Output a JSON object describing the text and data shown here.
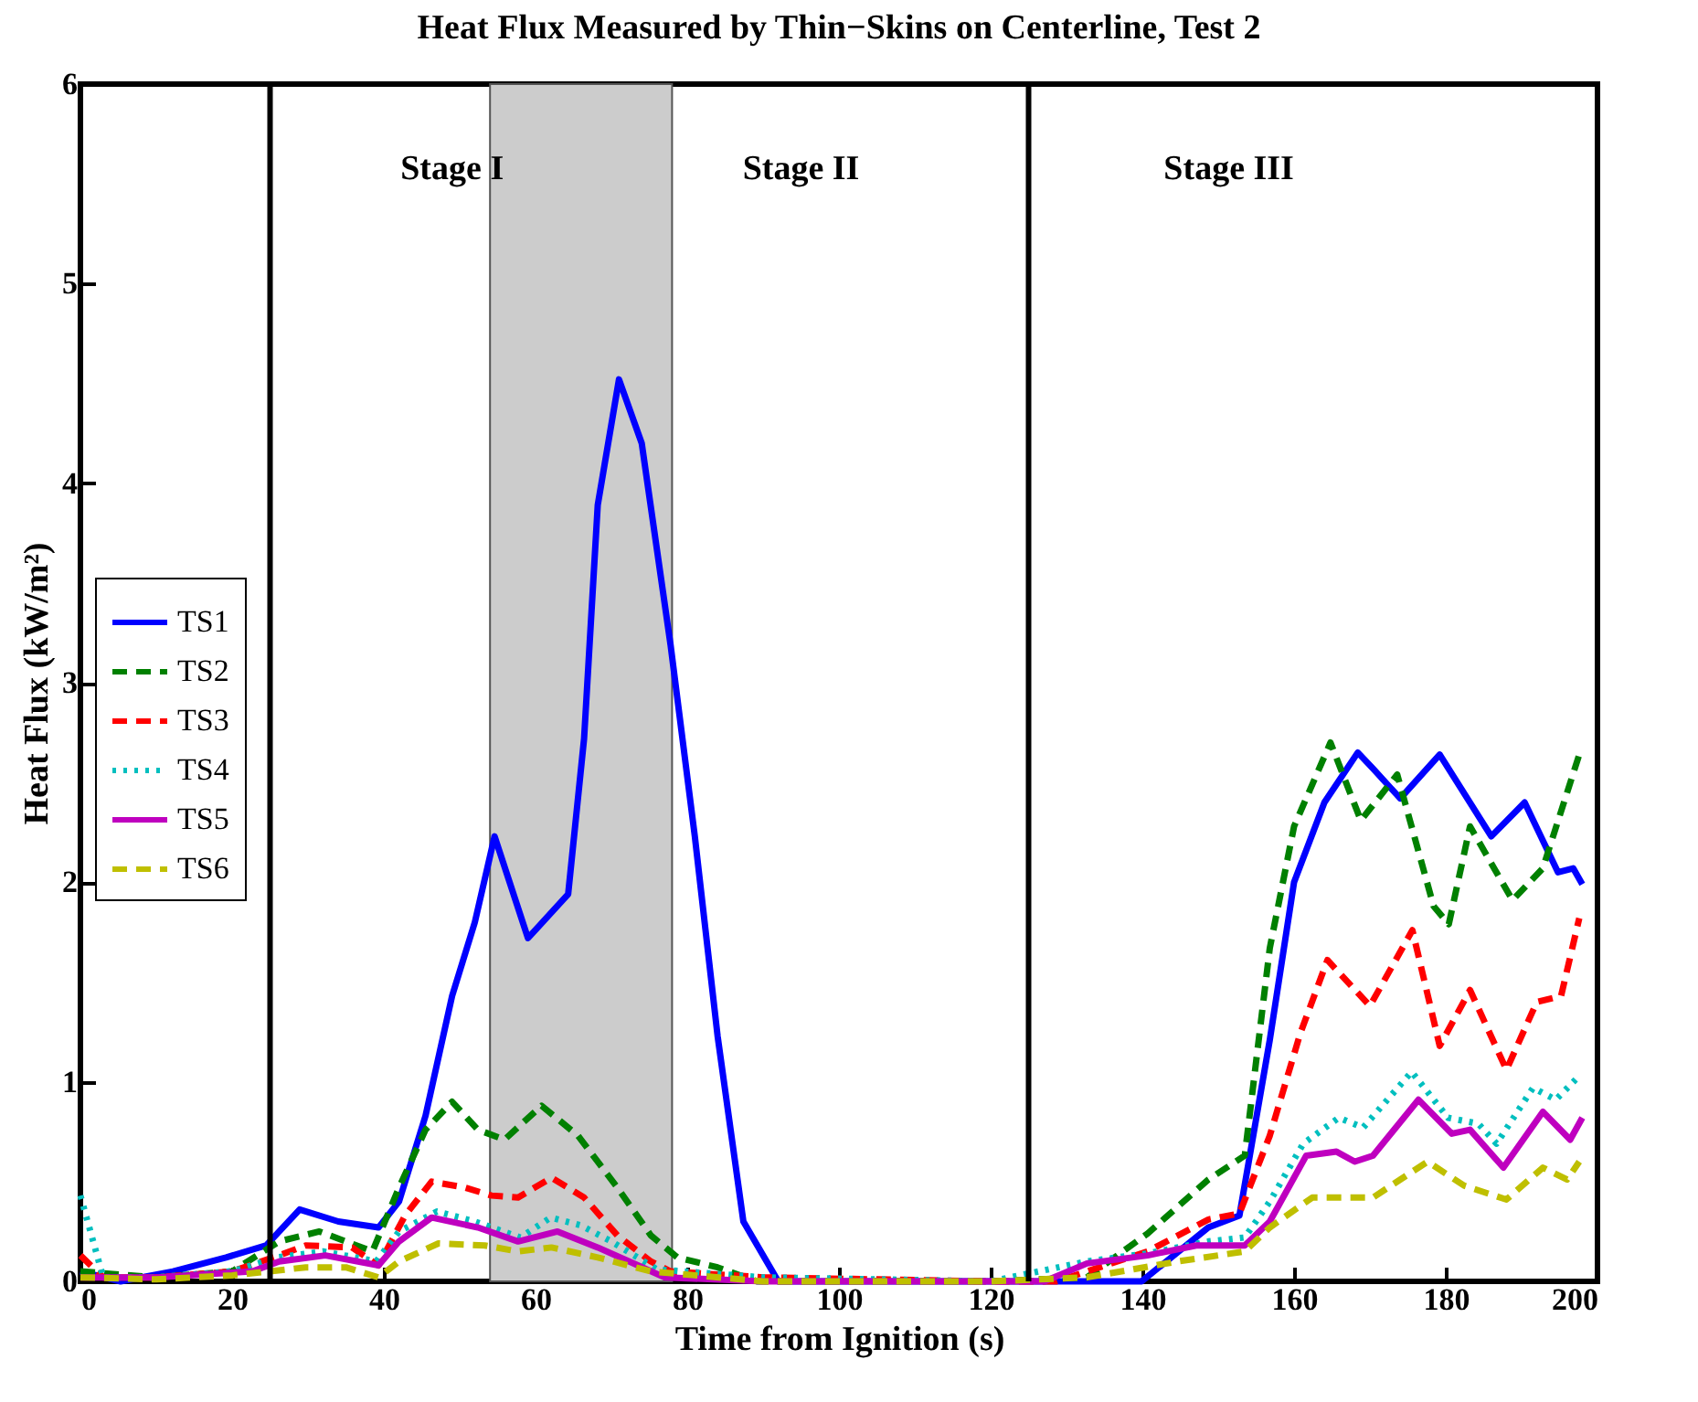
{
  "chart_data": {
    "type": "line",
    "title": "Heat Flux Measured by Thin−Skins on Centerline, Test 2",
    "xlabel": "Time from Ignition (s)",
    "ylabel": "Heat Flux (kW/m²)",
    "xlim": [
      0,
      200
    ],
    "xticks": [
      0,
      20,
      40,
      60,
      80,
      100,
      120,
      140,
      160,
      180,
      200
    ],
    "ylim": [
      0,
      6
    ],
    "yticks": [
      0,
      1,
      2,
      3,
      4,
      5,
      6
    ],
    "grid": false,
    "legend": "left",
    "marker": "none",
    "ref_lines": [
      {
        "axis": "x",
        "value": 25,
        "color": "#000000"
      },
      {
        "axis": "x",
        "value": 125,
        "color": "#000000"
      }
    ],
    "bands": [
      {
        "axis": "x",
        "from": 54,
        "to": 78,
        "color": "#cccccc"
      }
    ],
    "annotations": [
      "Stage I",
      "Stage II",
      "Stage III"
    ],
    "series": [
      {
        "name": "TS1",
        "color": "#0000ff",
        "line_style": "solid",
        "x": [
          0,
          5.3,
          12.2,
          19.2,
          24.5,
          28.9,
          34,
          39.3,
          42,
          45.5,
          49,
          52,
          54.6,
          59,
          64.3,
          66.4,
          68.2,
          71,
          74,
          77.8,
          81,
          84,
          87.4,
          92,
          100,
          120,
          139.9,
          148.7,
          152.8,
          156.8,
          160,
          164,
          168.4,
          170.4,
          174,
          179.2,
          186,
          190.4,
          194.8,
          196.8,
          198
        ],
        "values": [
          0.05,
          0,
          0.05,
          0.12,
          0.18,
          0.36,
          0.3,
          0.27,
          0.4,
          0.83,
          1.43,
          1.8,
          2.23,
          1.72,
          1.94,
          2.72,
          3.89,
          4.52,
          4.2,
          3.19,
          2.23,
          1.23,
          0.3,
          0,
          0,
          0,
          0,
          0.27,
          0.33,
          1.21,
          2.0,
          2.4,
          2.65,
          2.57,
          2.42,
          2.64,
          2.23,
          2.4,
          2.05,
          2.07,
          1.99
        ]
      },
      {
        "name": "TS2",
        "color": "#008000",
        "line_style": "dashed",
        "x": [
          0,
          10,
          20,
          26.2,
          31.5,
          38.5,
          42,
          45.5,
          49,
          52.4,
          55.9,
          60.8,
          65.6,
          70.8,
          75.2,
          78.7,
          84,
          89.2,
          100,
          120,
          132.7,
          140.7,
          148.7,
          153.5,
          156.8,
          160,
          164.8,
          168.8,
          173.6,
          178.4,
          180.4,
          183.2,
          188.8,
          192.8,
          197.6
        ],
        "values": [
          0.05,
          0.02,
          0.05,
          0.2,
          0.25,
          0.15,
          0.47,
          0.76,
          0.9,
          0.76,
          0.71,
          0.88,
          0.73,
          0.47,
          0.23,
          0.12,
          0.07,
          0,
          0,
          0,
          0.02,
          0.24,
          0.51,
          0.63,
          1.67,
          2.28,
          2.7,
          2.31,
          2.54,
          1.88,
          1.79,
          2.28,
          1.91,
          2.07,
          2.64
        ]
      },
      {
        "name": "TS3",
        "color": "#ff0000",
        "line_style": "dashed",
        "x": [
          0,
          3,
          10,
          20,
          26.2,
          29.7,
          35.8,
          39.3,
          42.8,
          46.3,
          50.7,
          54.2,
          57.7,
          62.1,
          66.4,
          70.8,
          75.2,
          77.8,
          90,
          120,
          128.7,
          140.7,
          148.7,
          152.8,
          156.8,
          160.8,
          164.4,
          170,
          175.6,
          179.2,
          183.2,
          188,
          192,
          195.2,
          197.6
        ],
        "values": [
          0.13,
          0.02,
          0.02,
          0.05,
          0.13,
          0.18,
          0.17,
          0.08,
          0.33,
          0.5,
          0.47,
          0.43,
          0.42,
          0.52,
          0.42,
          0.23,
          0.1,
          0.05,
          0.02,
          0,
          0,
          0.15,
          0.31,
          0.34,
          0.73,
          1.24,
          1.61,
          1.38,
          1.76,
          1.18,
          1.46,
          1.06,
          1.4,
          1.43,
          1.82
        ]
      },
      {
        "name": "TS4",
        "color": "#00bfbf",
        "line_style": "dotted",
        "x": [
          0,
          3,
          10,
          20,
          26,
          32,
          39,
          42,
          47,
          52,
          58,
          62,
          66,
          70,
          76,
          90,
          120,
          132.7,
          140.7,
          148.7,
          153.5,
          156.8,
          161.2,
          165.9,
          169.1,
          175.5,
          180.3,
          184.3,
          186.7,
          191.5,
          194.5,
          197.6
        ],
        "values": [
          0.43,
          0.02,
          0.02,
          0.05,
          0.12,
          0.15,
          0.1,
          0.25,
          0.35,
          0.3,
          0.22,
          0.32,
          0.28,
          0.2,
          0.06,
          0.02,
          0,
          0.1,
          0.14,
          0.2,
          0.22,
          0.4,
          0.69,
          0.82,
          0.77,
          1.05,
          0.82,
          0.79,
          0.69,
          0.97,
          0.91,
          1.03
        ]
      },
      {
        "name": "TS5",
        "color": "#bf00bf",
        "line_style": "solid",
        "x": [
          0,
          10,
          22.7,
          26.2,
          32.3,
          39.3,
          42,
          46.3,
          52.4,
          57.7,
          62.9,
          68.2,
          73.5,
          77,
          90,
          120,
          127.1,
          132.7,
          140.7,
          147.1,
          153.5,
          156.8,
          161.6,
          165.6,
          168,
          170.4,
          176.4,
          180.8,
          183.2,
          187.6,
          192.8,
          196.4,
          198
        ],
        "values": [
          0.02,
          0.02,
          0.05,
          0.1,
          0.13,
          0.08,
          0.2,
          0.32,
          0.27,
          0.2,
          0.25,
          0.17,
          0.08,
          0.02,
          0,
          0,
          0,
          0.09,
          0.13,
          0.18,
          0.18,
          0.3,
          0.63,
          0.65,
          0.6,
          0.63,
          0.91,
          0.74,
          0.76,
          0.57,
          0.85,
          0.71,
          0.82
        ]
      },
      {
        "name": "TS6",
        "color": "#bfbf00",
        "line_style": "dashed",
        "x": [
          0,
          10,
          20,
          29.7,
          35,
          39.3,
          42,
          47.2,
          53.3,
          57.7,
          62.1,
          68.2,
          75.2,
          90,
          120,
          132.7,
          144.7,
          153.5,
          156.8,
          162.4,
          170.4,
          177.6,
          182.4,
          188,
          192.8,
          196,
          197.6
        ],
        "values": [
          0.02,
          0.01,
          0.03,
          0.07,
          0.07,
          0.02,
          0.1,
          0.19,
          0.18,
          0.15,
          0.17,
          0.12,
          0.05,
          0,
          0,
          0.02,
          0.1,
          0.15,
          0.27,
          0.42,
          0.42,
          0.6,
          0.48,
          0.41,
          0.57,
          0.51,
          0.6
        ]
      }
    ]
  }
}
